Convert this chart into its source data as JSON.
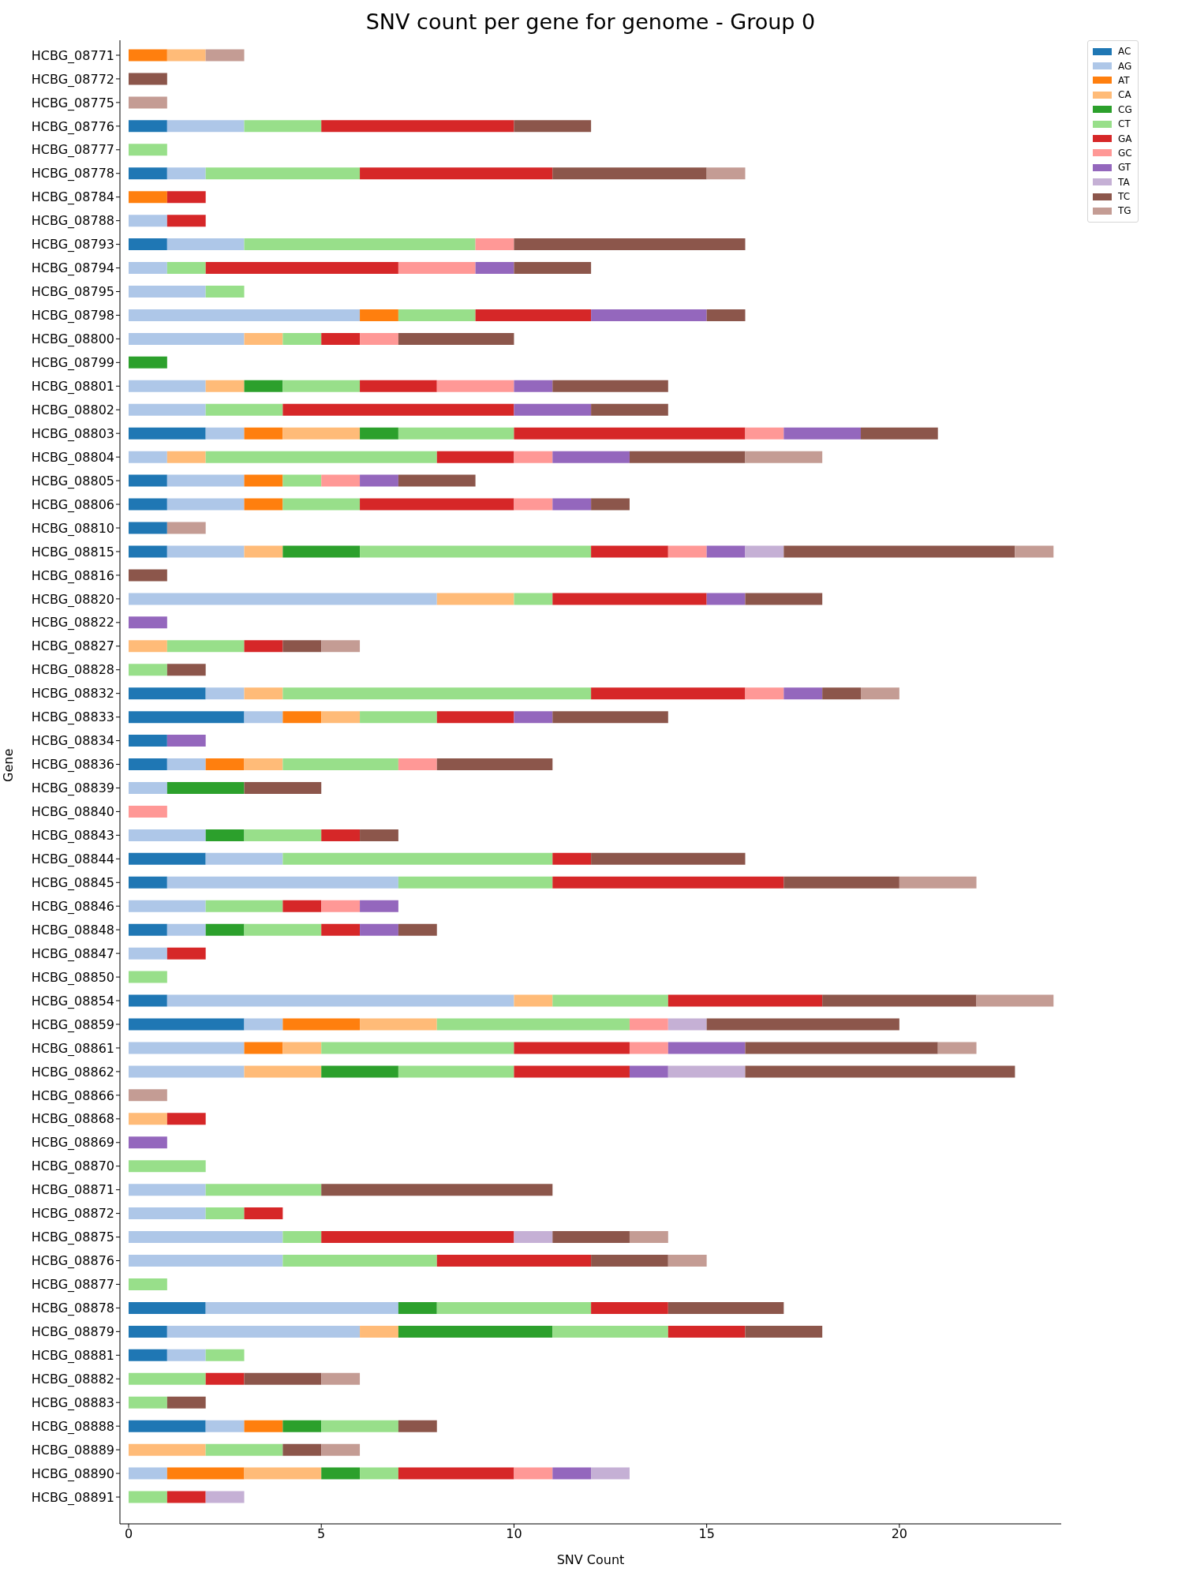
{
  "chart_data": {
    "type": "bar",
    "title": "SNV count per gene for genome - Group 0",
    "xlabel": "SNV Count",
    "ylabel": "Gene",
    "orientation": "horizontal",
    "stacked": true,
    "legend": "top right",
    "xlim": [
      0,
      24.2
    ],
    "xticks": [
      0,
      5,
      10,
      15,
      20
    ],
    "categories": [
      "HCBG_08771",
      "HCBG_08772",
      "HCBG_08775",
      "HCBG_08776",
      "HCBG_08777",
      "HCBG_08778",
      "HCBG_08784",
      "HCBG_08788",
      "HCBG_08793",
      "HCBG_08794",
      "HCBG_08795",
      "HCBG_08798",
      "HCBG_08800",
      "HCBG_08799",
      "HCBG_08801",
      "HCBG_08802",
      "HCBG_08803",
      "HCBG_08804",
      "HCBG_08805",
      "HCBG_08806",
      "HCBG_08810",
      "HCBG_08815",
      "HCBG_08816",
      "HCBG_08820",
      "HCBG_08822",
      "HCBG_08827",
      "HCBG_08828",
      "HCBG_08832",
      "HCBG_08833",
      "HCBG_08834",
      "HCBG_08836",
      "HCBG_08839",
      "HCBG_08840",
      "HCBG_08843",
      "HCBG_08844",
      "HCBG_08845",
      "HCBG_08846",
      "HCBG_08848",
      "HCBG_08847",
      "HCBG_08850",
      "HCBG_08854",
      "HCBG_08859",
      "HCBG_08861",
      "HCBG_08862",
      "HCBG_08866",
      "HCBG_08868",
      "HCBG_08869",
      "HCBG_08870",
      "HCBG_08871",
      "HCBG_08872",
      "HCBG_08875",
      "HCBG_08876",
      "HCBG_08877",
      "HCBG_08878",
      "HCBG_08879",
      "HCBG_08881",
      "HCBG_08882",
      "HCBG_08883",
      "HCBG_08888",
      "HCBG_08889",
      "HCBG_08890",
      "HCBG_08891"
    ],
    "series": [
      {
        "name": "AC",
        "color": "#1f77b4",
        "values": [
          0,
          0,
          0,
          1,
          0,
          1,
          0,
          0,
          1,
          0,
          0,
          0,
          0,
          0,
          0,
          0,
          2,
          0,
          1,
          1,
          1,
          1,
          0,
          0,
          0,
          0,
          0,
          2,
          3,
          1,
          1,
          0,
          0,
          0,
          2,
          1,
          0,
          1,
          0,
          0,
          1,
          3,
          0,
          0,
          0,
          0,
          0,
          0,
          0,
          0,
          0,
          0,
          0,
          2,
          1,
          1,
          0,
          0,
          2,
          0,
          0,
          0
        ]
      },
      {
        "name": "AG",
        "color": "#aec7e8",
        "values": [
          0,
          0,
          0,
          2,
          0,
          1,
          0,
          1,
          2,
          1,
          2,
          6,
          3,
          0,
          2,
          2,
          1,
          1,
          2,
          2,
          0,
          2,
          0,
          8,
          0,
          0,
          0,
          1,
          1,
          0,
          1,
          1,
          0,
          2,
          2,
          6,
          2,
          1,
          1,
          0,
          9,
          1,
          3,
          3,
          0,
          0,
          0,
          0,
          2,
          2,
          4,
          4,
          0,
          5,
          5,
          1,
          0,
          0,
          1,
          0,
          1,
          0
        ]
      },
      {
        "name": "AT",
        "color": "#ff7f0e",
        "values": [
          1,
          0,
          0,
          0,
          0,
          0,
          1,
          0,
          0,
          0,
          0,
          1,
          0,
          0,
          0,
          0,
          1,
          0,
          1,
          1,
          0,
          0,
          0,
          0,
          0,
          0,
          0,
          0,
          1,
          0,
          1,
          0,
          0,
          0,
          0,
          0,
          0,
          0,
          0,
          0,
          0,
          2,
          1,
          0,
          0,
          0,
          0,
          0,
          0,
          0,
          0,
          0,
          0,
          0,
          0,
          0,
          0,
          0,
          1,
          0,
          2,
          0
        ]
      },
      {
        "name": "CA",
        "color": "#ffbb78",
        "values": [
          1,
          0,
          0,
          0,
          0,
          0,
          0,
          0,
          0,
          0,
          0,
          0,
          1,
          0,
          1,
          0,
          2,
          1,
          0,
          0,
          0,
          1,
          0,
          2,
          0,
          1,
          0,
          1,
          1,
          0,
          1,
          0,
          0,
          0,
          0,
          0,
          0,
          0,
          0,
          0,
          1,
          2,
          1,
          2,
          0,
          1,
          0,
          0,
          0,
          0,
          0,
          0,
          0,
          0,
          1,
          0,
          0,
          0,
          0,
          2,
          2,
          0
        ]
      },
      {
        "name": "CG",
        "color": "#2ca02c",
        "values": [
          0,
          0,
          0,
          0,
          0,
          0,
          0,
          0,
          0,
          0,
          0,
          0,
          0,
          1,
          1,
          0,
          1,
          0,
          0,
          0,
          0,
          2,
          0,
          0,
          0,
          0,
          0,
          0,
          0,
          0,
          0,
          2,
          0,
          1,
          0,
          0,
          0,
          1,
          0,
          0,
          0,
          0,
          0,
          2,
          0,
          0,
          0,
          0,
          0,
          0,
          0,
          0,
          0,
          1,
          4,
          0,
          0,
          0,
          1,
          0,
          1,
          0
        ]
      },
      {
        "name": "CT",
        "color": "#98df8a",
        "values": [
          0,
          0,
          0,
          2,
          1,
          4,
          0,
          0,
          6,
          1,
          1,
          2,
          1,
          0,
          2,
          2,
          3,
          6,
          1,
          2,
          0,
          6,
          0,
          1,
          0,
          2,
          1,
          8,
          2,
          0,
          3,
          0,
          0,
          2,
          7,
          4,
          2,
          2,
          0,
          1,
          3,
          5,
          5,
          3,
          0,
          0,
          0,
          2,
          3,
          1,
          1,
          4,
          1,
          4,
          3,
          1,
          2,
          1,
          2,
          2,
          1,
          1
        ]
      },
      {
        "name": "GA",
        "color": "#d62728",
        "values": [
          0,
          0,
          0,
          5,
          0,
          5,
          1,
          1,
          0,
          5,
          0,
          3,
          1,
          0,
          2,
          6,
          6,
          2,
          0,
          4,
          0,
          2,
          0,
          4,
          0,
          1,
          0,
          4,
          2,
          0,
          0,
          0,
          0,
          1,
          1,
          6,
          1,
          1,
          1,
          0,
          4,
          0,
          3,
          3,
          0,
          1,
          0,
          0,
          0,
          1,
          5,
          4,
          0,
          2,
          2,
          0,
          1,
          0,
          0,
          0,
          3,
          1
        ]
      },
      {
        "name": "GC",
        "color": "#ff9896",
        "values": [
          0,
          0,
          0,
          0,
          0,
          0,
          0,
          0,
          1,
          2,
          0,
          0,
          1,
          0,
          2,
          0,
          1,
          1,
          1,
          1,
          0,
          1,
          0,
          0,
          0,
          0,
          0,
          1,
          0,
          0,
          1,
          0,
          1,
          0,
          0,
          0,
          1,
          0,
          0,
          0,
          0,
          1,
          1,
          0,
          0,
          0,
          0,
          0,
          0,
          0,
          0,
          0,
          0,
          0,
          0,
          0,
          0,
          0,
          0,
          0,
          1,
          0
        ]
      },
      {
        "name": "GT",
        "color": "#9467bd",
        "values": [
          0,
          0,
          0,
          0,
          0,
          0,
          0,
          0,
          0,
          1,
          0,
          3,
          0,
          0,
          1,
          2,
          2,
          2,
          1,
          1,
          0,
          1,
          0,
          1,
          1,
          0,
          0,
          1,
          1,
          1,
          0,
          0,
          0,
          0,
          0,
          0,
          1,
          1,
          0,
          0,
          0,
          0,
          2,
          1,
          0,
          0,
          1,
          0,
          0,
          0,
          0,
          0,
          0,
          0,
          0,
          0,
          0,
          0,
          0,
          0,
          1,
          0
        ]
      },
      {
        "name": "TA",
        "color": "#c5b0d5",
        "values": [
          0,
          0,
          0,
          0,
          0,
          0,
          0,
          0,
          0,
          0,
          0,
          0,
          0,
          0,
          0,
          0,
          0,
          0,
          0,
          0,
          0,
          1,
          0,
          0,
          0,
          0,
          0,
          0,
          0,
          0,
          0,
          0,
          0,
          0,
          0,
          0,
          0,
          0,
          0,
          0,
          0,
          1,
          0,
          2,
          0,
          0,
          0,
          0,
          0,
          0,
          1,
          0,
          0,
          0,
          0,
          0,
          0,
          0,
          0,
          0,
          1,
          1
        ]
      },
      {
        "name": "TC",
        "color": "#8c564b",
        "values": [
          0,
          1,
          0,
          2,
          0,
          4,
          0,
          0,
          6,
          2,
          0,
          1,
          3,
          0,
          3,
          2,
          2,
          3,
          2,
          1,
          0,
          6,
          1,
          2,
          0,
          1,
          1,
          1,
          3,
          0,
          3,
          2,
          0,
          1,
          4,
          3,
          0,
          1,
          0,
          0,
          4,
          5,
          5,
          7,
          0,
          0,
          0,
          0,
          6,
          0,
          2,
          2,
          0,
          3,
          2,
          0,
          2,
          1,
          1,
          1,
          0,
          0
        ]
      },
      {
        "name": "TG",
        "color": "#c49c94",
        "values": [
          1,
          0,
          1,
          0,
          0,
          1,
          0,
          0,
          0,
          0,
          0,
          0,
          0,
          0,
          0,
          0,
          0,
          2,
          0,
          0,
          1,
          1,
          0,
          0,
          0,
          1,
          0,
          1,
          0,
          0,
          0,
          0,
          0,
          0,
          0,
          2,
          0,
          0,
          0,
          0,
          2,
          0,
          1,
          0,
          1,
          0,
          0,
          0,
          0,
          0,
          1,
          1,
          0,
          0,
          0,
          0,
          1,
          0,
          0,
          1,
          0,
          0
        ]
      }
    ]
  }
}
